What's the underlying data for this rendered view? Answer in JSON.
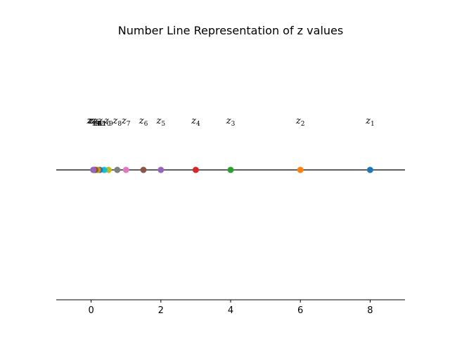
{
  "chart_data": {
    "type": "scatter",
    "title": "Number Line Representation of z values",
    "xlabel": "",
    "ylabel": "",
    "xlim": [
      -1,
      9
    ],
    "xticks": [
      0,
      2,
      4,
      6,
      8
    ],
    "grid": false,
    "points": [
      {
        "label": "z",
        "sub": "1",
        "x": 8,
        "color": "#1f77b4"
      },
      {
        "label": "z",
        "sub": "2",
        "x": 6,
        "color": "#ff7f0e"
      },
      {
        "label": "z",
        "sub": "3",
        "x": 4,
        "color": "#2ca02c"
      },
      {
        "label": "z",
        "sub": "4",
        "x": 3,
        "color": "#d62728"
      },
      {
        "label": "z",
        "sub": "5",
        "x": 2,
        "color": "#9467bd"
      },
      {
        "label": "z",
        "sub": "6",
        "x": 1.5,
        "color": "#8c564b"
      },
      {
        "label": "z",
        "sub": "7",
        "x": 1,
        "color": "#e377c2"
      },
      {
        "label": "z",
        "sub": "8",
        "x": 0.75,
        "color": "#7f7f7f"
      },
      {
        "label": "z",
        "sub": "9",
        "x": 0.5,
        "color": "#bcbd22"
      },
      {
        "label": "z",
        "sub": "10",
        "x": 0.375,
        "color": "#17becf"
      },
      {
        "label": "z",
        "sub": "11",
        "x": 0.25,
        "color": "#1f77b4"
      },
      {
        "label": "z",
        "sub": "12",
        "x": 0.1875,
        "color": "#ff7f0e"
      },
      {
        "label": "z",
        "sub": "13",
        "x": 0.125,
        "color": "#2ca02c"
      },
      {
        "label": "z",
        "sub": "14",
        "x": 0.09,
        "color": "#d62728"
      },
      {
        "label": "z",
        "sub": "15",
        "x": 0.06,
        "color": "#9467bd"
      }
    ]
  }
}
